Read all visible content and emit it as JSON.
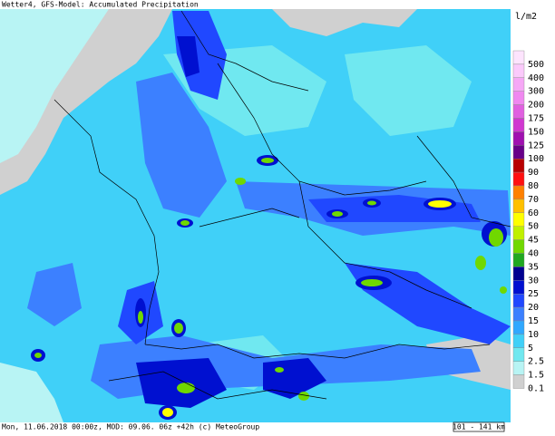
{
  "header": {
    "title": "Wetter4, GFS-Model: Accumulated Precipitation"
  },
  "legend": {
    "unit": "l/m2",
    "items": [
      {
        "label": "500",
        "color": "#fde4fd"
      },
      {
        "label": "400",
        "color": "#fbcafb"
      },
      {
        "label": "300",
        "color": "#f6a8f6"
      },
      {
        "label": "200",
        "color": "#f088f0"
      },
      {
        "label": "175",
        "color": "#e060e0"
      },
      {
        "label": "150",
        "color": "#d038d0"
      },
      {
        "label": "125",
        "color": "#a010b0"
      },
      {
        "label": "100",
        "color": "#680088"
      },
      {
        "label": "90",
        "color": "#b80000"
      },
      {
        "label": "80",
        "color": "#ff1010"
      },
      {
        "label": "70",
        "color": "#ff8000"
      },
      {
        "label": "60",
        "color": "#ffc000"
      },
      {
        "label": "50",
        "color": "#ffff00"
      },
      {
        "label": "45",
        "color": "#c0f000"
      },
      {
        "label": "40",
        "color": "#70d800"
      },
      {
        "label": "35",
        "color": "#20a820"
      },
      {
        "label": "30",
        "color": "#000090"
      },
      {
        "label": "25",
        "color": "#0010d0"
      },
      {
        "label": "20",
        "color": "#2048ff"
      },
      {
        "label": "15",
        "color": "#3c80ff"
      },
      {
        "label": "10",
        "color": "#30a8ff"
      },
      {
        "label": "5",
        "color": "#40d0f8"
      },
      {
        "label": "2.5",
        "color": "#70e8f0"
      },
      {
        "label": "1.5",
        "color": "#b8f4f4"
      },
      {
        "label": "0.1",
        "color": "#d0d0d0"
      }
    ]
  },
  "footer": {
    "text": "Mon, 11.06.2018 00:00z, MOD: 09.06. 06z +42h (c) MeteoGroup",
    "scale": "101 - 141 km"
  }
}
